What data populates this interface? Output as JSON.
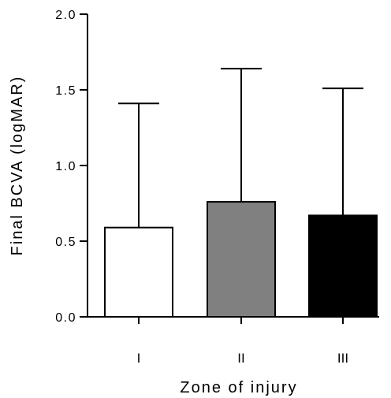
{
  "chart_data": {
    "type": "bar",
    "categories": [
      "I",
      "II",
      "III"
    ],
    "values": [
      0.59,
      0.76,
      0.67
    ],
    "error_upper": [
      1.41,
      1.64,
      1.51
    ],
    "bar_colors": [
      "#ffffff",
      "#808080",
      "#000000"
    ],
    "xlabel": "Zone of injury",
    "ylabel": "Final BCVA (logMAR)",
    "ylim": [
      0,
      2.0
    ],
    "yticks": [
      0.0,
      0.5,
      1.0,
      1.5,
      2.0
    ],
    "ytick_labels": [
      "0.0",
      "0.5",
      "1.0",
      "1.5",
      "2.0"
    ],
    "grid": false,
    "legend": false
  }
}
